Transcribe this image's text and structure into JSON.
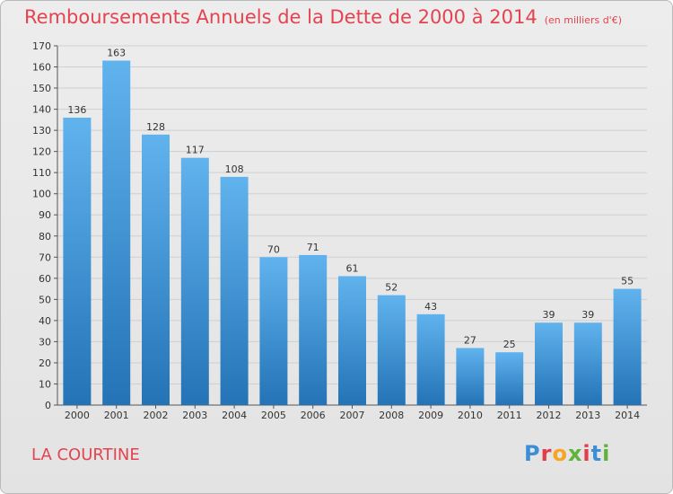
{
  "title": "Remboursements Annuels de la Dette de 2000 à 2014",
  "unit": "(en milliers d'€)",
  "commune": "LA COURTINE",
  "logo": {
    "letters": [
      "P",
      "r",
      "o",
      "x",
      "i",
      "t",
      "i"
    ],
    "colors": [
      "#3a8fd6",
      "#e23d49",
      "#f5a623",
      "#5fb23a",
      "#e23d49",
      "#3a8fd6",
      "#5fb23a"
    ]
  },
  "colors": {
    "title": "#e4434f",
    "bar_top": "#61b3ee",
    "bar_bottom": "#2373b6"
  },
  "chart_data": {
    "type": "bar",
    "categories": [
      "2000",
      "2001",
      "2002",
      "2003",
      "2004",
      "2005",
      "2006",
      "2007",
      "2008",
      "2009",
      "2010",
      "2011",
      "2012",
      "2013",
      "2014"
    ],
    "values": [
      136,
      163,
      128,
      117,
      108,
      70,
      71,
      61,
      52,
      43,
      27,
      25,
      39,
      39,
      55
    ],
    "title": "Remboursements Annuels de la Dette de 2000 à 2014",
    "xlabel": "",
    "ylabel": "",
    "ylim": [
      0,
      170
    ],
    "yticks": [
      0,
      10,
      20,
      30,
      40,
      50,
      60,
      70,
      80,
      90,
      100,
      110,
      120,
      130,
      140,
      150,
      160,
      170
    ],
    "grid": true,
    "data_labels": true
  }
}
